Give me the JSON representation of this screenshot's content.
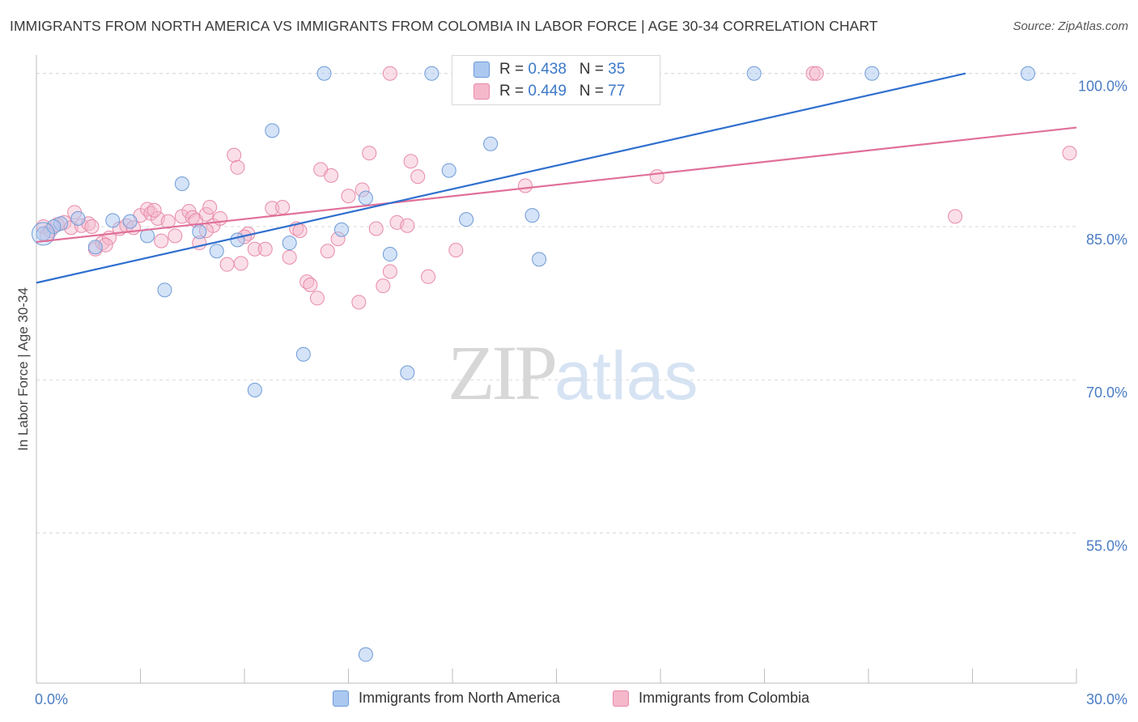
{
  "header": {
    "title": "IMMIGRANTS FROM NORTH AMERICA VS IMMIGRANTS FROM COLOMBIA IN LABOR FORCE | AGE 30-34 CORRELATION CHART",
    "source": "Source: ZipAtlas.com"
  },
  "watermark": {
    "zip": "ZIP",
    "atlas": "atlas"
  },
  "colors": {
    "blue_fill": "#aac8f0",
    "blue_stroke": "#6f9bd8",
    "blue_line": "#2f6fcf",
    "pink_fill": "#f5b8cb",
    "pink_stroke": "#e88aa8",
    "pink_line": "#e0709a",
    "tick_label": "#4a7cc4",
    "grid": "#d9d9d9"
  },
  "legend_top": {
    "rows": [
      {
        "r_label": "R =",
        "r_value": "0.438",
        "n_label": "N =",
        "n_value": "35"
      },
      {
        "r_label": "R =",
        "r_value": "0.449",
        "n_label": "N =",
        "n_value": "77"
      }
    ]
  },
  "chart_data": {
    "type": "scatter",
    "title": "IMMIGRANTS FROM NORTH AMERICA VS IMMIGRANTS FROM COLOMBIA IN LABOR FORCE | AGE 30-34 CORRELATION CHART",
    "xlabel": "",
    "ylabel": "In Labor Force | Age 30-34",
    "xlim": [
      0,
      30
    ],
    "ylim": [
      40.3,
      101.8
    ],
    "x_tick_labels": [
      "0.0%",
      "30.0%"
    ],
    "y_ticks": [
      55,
      70,
      85,
      100
    ],
    "y_tick_labels": [
      "55.0%",
      "70.0%",
      "85.0%",
      "100.0%"
    ],
    "grid": "horizontal dashed",
    "legend_placement": "bottom",
    "series": [
      {
        "name": "Immigrants from North America",
        "r": 0.438,
        "n": 35,
        "trend": {
          "x": [
            0,
            26.8
          ],
          "y": [
            79.5,
            100.0
          ]
        },
        "points": [
          {
            "x": 0.2,
            "y": 84.3
          },
          {
            "x": 0.7,
            "y": 85.3
          },
          {
            "x": 1.2,
            "y": 85.8
          },
          {
            "x": 1.7,
            "y": 83.0
          },
          {
            "x": 2.2,
            "y": 85.6
          },
          {
            "x": 2.7,
            "y": 85.5
          },
          {
            "x": 3.2,
            "y": 84.1
          },
          {
            "x": 3.7,
            "y": 78.8
          },
          {
            "x": 4.2,
            "y": 89.2
          },
          {
            "x": 4.7,
            "y": 84.5
          },
          {
            "x": 5.2,
            "y": 82.6
          },
          {
            "x": 5.8,
            "y": 83.7
          },
          {
            "x": 6.3,
            "y": 69.0
          },
          {
            "x": 6.8,
            "y": 94.4
          },
          {
            "x": 7.3,
            "y": 83.4
          },
          {
            "x": 7.7,
            "y": 72.5
          },
          {
            "x": 8.3,
            "y": 100.0
          },
          {
            "x": 8.8,
            "y": 84.7
          },
          {
            "x": 9.5,
            "y": 87.8
          },
          {
            "x": 9.5,
            "y": 43.1
          },
          {
            "x": 10.2,
            "y": 82.3
          },
          {
            "x": 10.7,
            "y": 70.7
          },
          {
            "x": 11.4,
            "y": 100.0
          },
          {
            "x": 11.9,
            "y": 90.5
          },
          {
            "x": 12.4,
            "y": 85.7
          },
          {
            "x": 13.1,
            "y": 93.1
          },
          {
            "x": 14.2,
            "y": 100.0
          },
          {
            "x": 14.3,
            "y": 86.1
          },
          {
            "x": 14.5,
            "y": 81.8
          },
          {
            "x": 15.8,
            "y": 100.0
          },
          {
            "x": 16.1,
            "y": 100.0
          },
          {
            "x": 20.7,
            "y": 100.0
          },
          {
            "x": 24.1,
            "y": 100.0
          },
          {
            "x": 28.6,
            "y": 100.0
          },
          {
            "x": 0.5,
            "y": 85.0
          }
        ]
      },
      {
        "name": "Immigrants from Colombia",
        "r": 0.449,
        "n": 77,
        "trend": {
          "x": [
            0,
            30
          ],
          "y": [
            83.5,
            94.7
          ]
        },
        "points": [
          {
            "x": 0.2,
            "y": 85.0
          },
          {
            "x": 0.4,
            "y": 84.6
          },
          {
            "x": 0.6,
            "y": 85.2
          },
          {
            "x": 0.8,
            "y": 85.4
          },
          {
            "x": 1.0,
            "y": 84.9
          },
          {
            "x": 1.1,
            "y": 86.4
          },
          {
            "x": 1.3,
            "y": 85.1
          },
          {
            "x": 1.5,
            "y": 85.3
          },
          {
            "x": 1.7,
            "y": 82.8
          },
          {
            "x": 1.9,
            "y": 83.4
          },
          {
            "x": 2.1,
            "y": 83.9
          },
          {
            "x": 2.4,
            "y": 84.8
          },
          {
            "x": 2.6,
            "y": 85.1
          },
          {
            "x": 2.8,
            "y": 84.9
          },
          {
            "x": 3.0,
            "y": 86.1
          },
          {
            "x": 3.2,
            "y": 86.7
          },
          {
            "x": 3.3,
            "y": 86.3
          },
          {
            "x": 3.5,
            "y": 85.8
          },
          {
            "x": 3.6,
            "y": 83.6
          },
          {
            "x": 3.8,
            "y": 85.5
          },
          {
            "x": 4.0,
            "y": 84.1
          },
          {
            "x": 4.2,
            "y": 86.0
          },
          {
            "x": 4.4,
            "y": 86.5
          },
          {
            "x": 4.5,
            "y": 85.9
          },
          {
            "x": 4.6,
            "y": 85.6
          },
          {
            "x": 4.7,
            "y": 83.4
          },
          {
            "x": 4.9,
            "y": 86.2
          },
          {
            "x": 5.0,
            "y": 86.9
          },
          {
            "x": 5.1,
            "y": 85.1
          },
          {
            "x": 5.3,
            "y": 85.8
          },
          {
            "x": 5.5,
            "y": 81.3
          },
          {
            "x": 5.7,
            "y": 92.0
          },
          {
            "x": 5.8,
            "y": 90.8
          },
          {
            "x": 5.9,
            "y": 81.4
          },
          {
            "x": 6.1,
            "y": 84.3
          },
          {
            "x": 6.3,
            "y": 82.8
          },
          {
            "x": 6.6,
            "y": 82.8
          },
          {
            "x": 6.8,
            "y": 86.8
          },
          {
            "x": 7.1,
            "y": 86.9
          },
          {
            "x": 7.3,
            "y": 82.0
          },
          {
            "x": 7.5,
            "y": 84.8
          },
          {
            "x": 7.6,
            "y": 84.6
          },
          {
            "x": 7.8,
            "y": 79.6
          },
          {
            "x": 7.9,
            "y": 79.3
          },
          {
            "x": 8.1,
            "y": 78.0
          },
          {
            "x": 8.2,
            "y": 90.6
          },
          {
            "x": 8.4,
            "y": 82.6
          },
          {
            "x": 8.5,
            "y": 90.0
          },
          {
            "x": 8.7,
            "y": 83.8
          },
          {
            "x": 9.0,
            "y": 88.0
          },
          {
            "x": 9.3,
            "y": 77.6
          },
          {
            "x": 9.4,
            "y": 88.6
          },
          {
            "x": 9.6,
            "y": 92.2
          },
          {
            "x": 9.8,
            "y": 84.8
          },
          {
            "x": 10.0,
            "y": 79.2
          },
          {
            "x": 10.2,
            "y": 80.6
          },
          {
            "x": 10.4,
            "y": 85.4
          },
          {
            "x": 10.7,
            "y": 85.1
          },
          {
            "x": 10.8,
            "y": 91.4
          },
          {
            "x": 11.0,
            "y": 89.9
          },
          {
            "x": 11.3,
            "y": 80.1
          },
          {
            "x": 12.1,
            "y": 82.7
          },
          {
            "x": 14.1,
            "y": 89.0
          },
          {
            "x": 15.9,
            "y": 100.0
          },
          {
            "x": 16.1,
            "y": 100.0
          },
          {
            "x": 17.9,
            "y": 89.9
          },
          {
            "x": 22.4,
            "y": 100.0
          },
          {
            "x": 22.5,
            "y": 100.0
          },
          {
            "x": 26.5,
            "y": 86.0
          },
          {
            "x": 29.8,
            "y": 92.2
          },
          {
            "x": 0.3,
            "y": 84.2
          },
          {
            "x": 1.6,
            "y": 85.0
          },
          {
            "x": 2.0,
            "y": 83.2
          },
          {
            "x": 3.4,
            "y": 86.6
          },
          {
            "x": 4.9,
            "y": 84.6
          },
          {
            "x": 6.0,
            "y": 84.0
          },
          {
            "x": 10.2,
            "y": 100.0
          }
        ]
      }
    ]
  },
  "legend_bottom": {
    "items": [
      {
        "label": "Immigrants from North America"
      },
      {
        "label": "Immigrants from Colombia"
      }
    ]
  }
}
